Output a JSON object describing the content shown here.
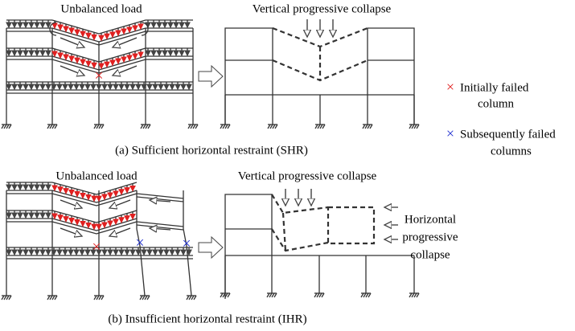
{
  "panel_a": {
    "left_label": "Unbalanced load",
    "right_label": "Vertical progressive collapse",
    "caption": "(a) Sufficient horizontal restraint (SHR)"
  },
  "legend": {
    "initial": {
      "lines": [
        "Initially failed",
        "column"
      ]
    },
    "subsequent": {
      "lines": [
        "Subsequently failed",
        "columns"
      ]
    }
  },
  "panel_b": {
    "left_label": "Unbalanced load",
    "right_label": "Vertical progressive collapse",
    "horizontal_label": {
      "lines": [
        "Horizontal",
        "progressive",
        "collapse"
      ]
    },
    "caption": "(b) Insufficient horizontal restraint (IHR)"
  }
}
